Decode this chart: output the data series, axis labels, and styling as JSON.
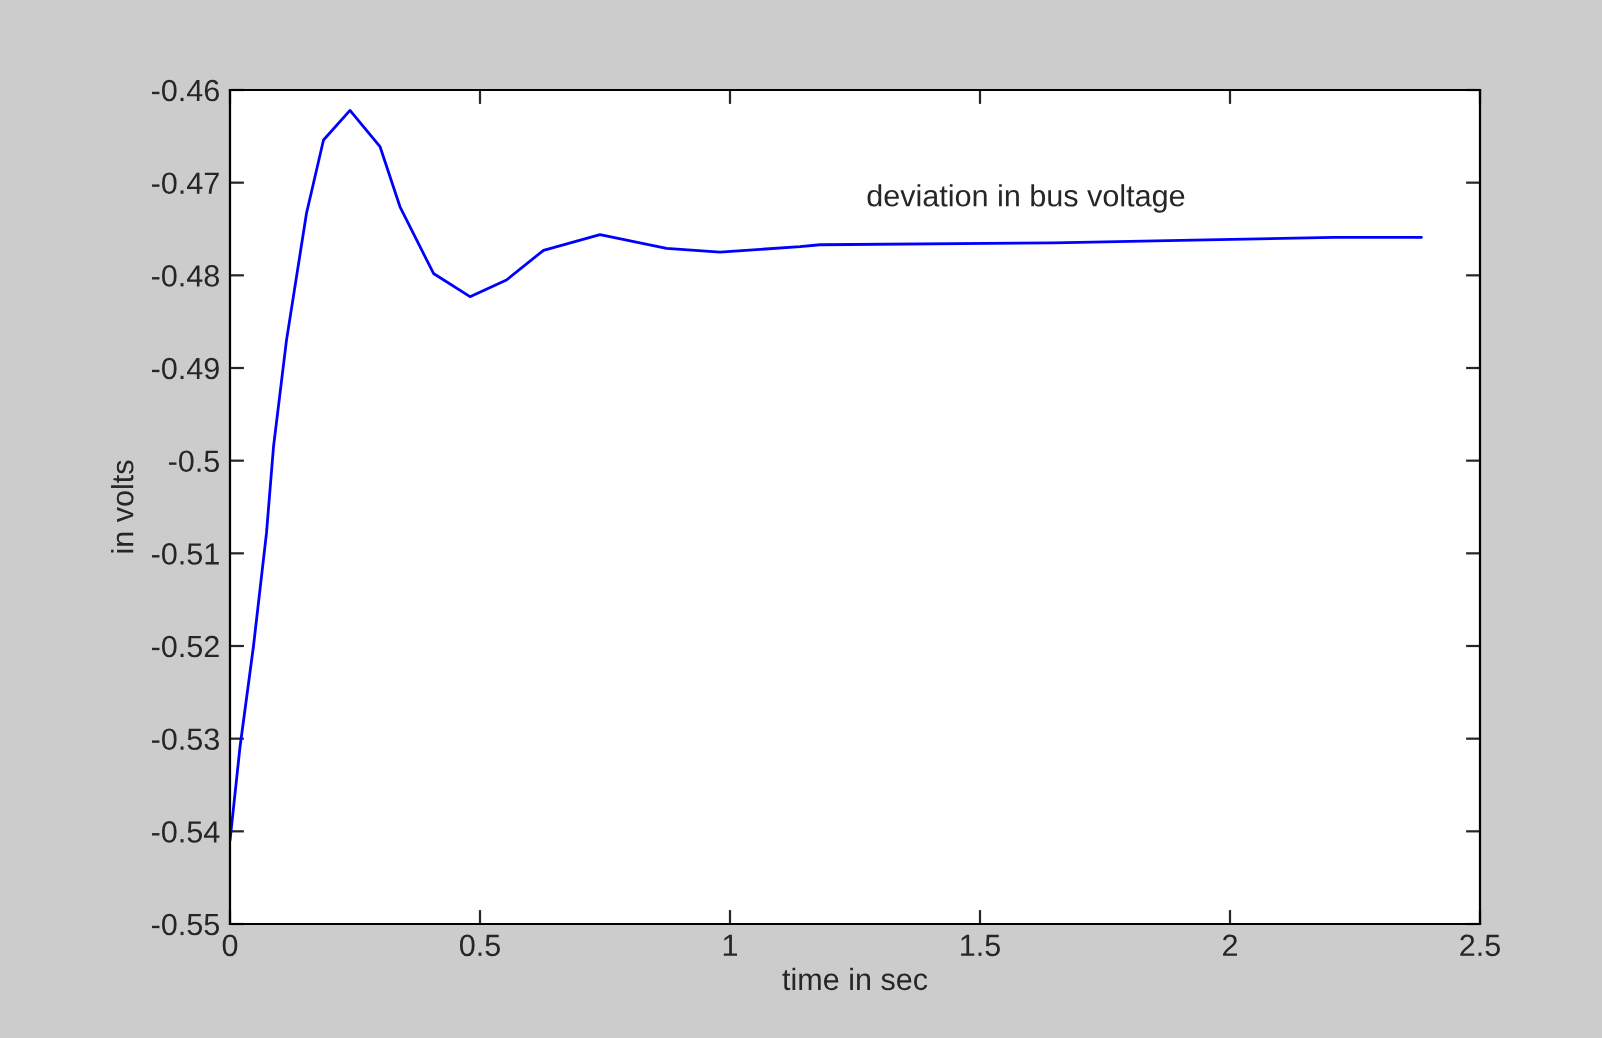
{
  "chart_data": {
    "type": "line",
    "xlabel": "time in sec",
    "ylabel": "in volts",
    "annotations": [
      "deviation in bus voltage"
    ],
    "series": [
      {
        "color": "#0000ff",
        "x": [
          0,
          0.02,
          0.047,
          0.073,
          0.087,
          0.113,
          0.153,
          0.187,
          0.24,
          0.3,
          0.34,
          0.407,
          0.48,
          0.553,
          0.627,
          0.74,
          0.873,
          0.98,
          1.14,
          1.18,
          1.647,
          1.927,
          2.207,
          2.383
        ],
        "values": [
          -0.541,
          -0.5309,
          -0.52,
          -0.5078,
          -0.4985,
          -0.487,
          -0.4733,
          -0.4654,
          -0.4622,
          -0.4661,
          -0.4726,
          -0.4798,
          -0.4823,
          -0.4805,
          -0.4773,
          -0.4756,
          -0.4771,
          -0.4775,
          -0.4769,
          -0.4767,
          -0.4765,
          -0.4762,
          -0.4759,
          -0.4759
        ]
      }
    ],
    "xlim": [
      0,
      2.5
    ],
    "xticks": [
      0,
      0.5,
      1,
      1.5,
      2,
      2.5
    ],
    "ylim": [
      -0.55,
      -0.46
    ],
    "yticks": [
      -0.55,
      -0.54,
      -0.53,
      -0.52,
      -0.51,
      -0.5,
      -0.49,
      -0.48,
      -0.47,
      -0.46
    ],
    "grid": false,
    "legend": false
  }
}
